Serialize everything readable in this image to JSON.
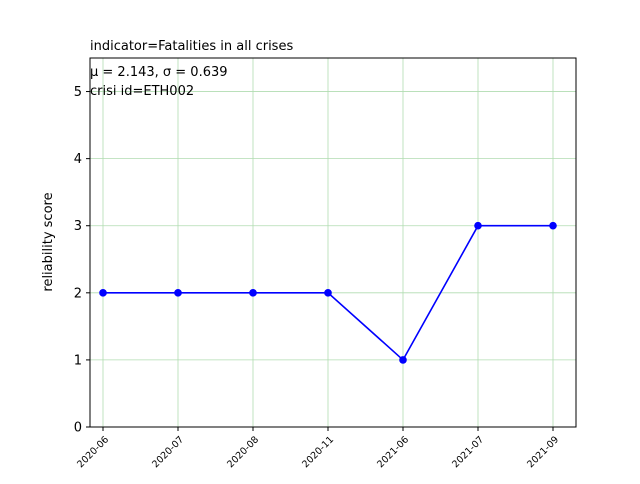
{
  "chart_data": {
    "type": "line",
    "title": "indicator=Fatalities in all crises",
    "stats_label": "μ = 2.143,  σ = 0.639",
    "crisis_label": "crisi id=ETH002",
    "xlabel": "",
    "ylabel": "reliability score",
    "categories": [
      "2020-06",
      "2020-07",
      "2020-08",
      "2020-11",
      "2021-06",
      "2021-07",
      "2021-09"
    ],
    "series": [
      {
        "values": [
          2,
          2,
          2,
          2,
          1,
          3,
          3
        ],
        "color": "#0000ff"
      }
    ],
    "ylim": [
      0,
      5.5
    ],
    "yticks": [
      0,
      1,
      2,
      3,
      4,
      5
    ],
    "grid": true,
    "grid_color": "#b0dcb0"
  }
}
